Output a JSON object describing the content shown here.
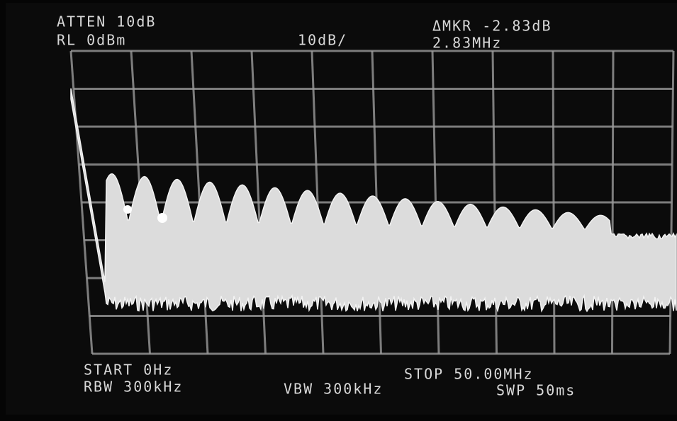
{
  "header": {
    "atten": "ATTEN 10dB",
    "ref_level": "RL 0dBm",
    "scale": "10dB/",
    "marker_delta": "ΔMKR -2.83dB",
    "marker_freq": "2.83MHz"
  },
  "footer": {
    "start": "START 0Hz",
    "stop": "STOP 50.00MHz",
    "rbw": "RBW 300kHz",
    "vbw": "VBW 300kHz",
    "sweep": "SWP 50ms"
  }
}
